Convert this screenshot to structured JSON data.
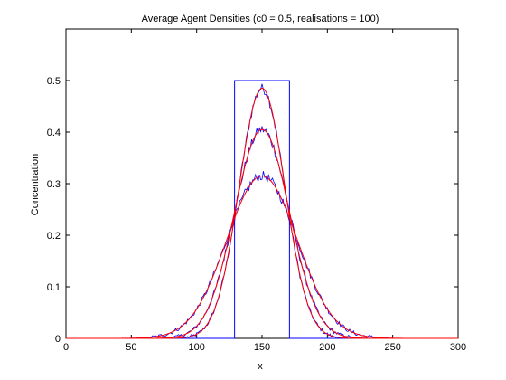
{
  "chart_data": {
    "type": "line",
    "title": "Average Agent Densities (c0 = 0.5, realisations = 100)",
    "xlabel": "x",
    "ylabel": "Concentration",
    "xlim": [
      0,
      300
    ],
    "ylim": [
      0,
      0.6
    ],
    "xticks": [
      "0",
      "50",
      "100",
      "150",
      "200",
      "250",
      "300"
    ],
    "yticks": [
      "0",
      "0.1",
      "0.2",
      "0.3",
      "0.4",
      "0.5"
    ],
    "grid": false,
    "legend": null,
    "colors": {
      "simulation": "#0000ff",
      "continuum": "#ff0000",
      "axes": "#000000"
    },
    "initial_condition": {
      "color": "#0000ff",
      "x": [
        0,
        129,
        129,
        171,
        171,
        300
      ],
      "y": [
        0,
        0,
        0.5,
        0.5,
        0,
        0
      ]
    },
    "profiles": [
      {
        "center": 150,
        "sigma": 17.5,
        "amplitude": 0.485
      },
      {
        "center": 150,
        "sigma": 21.0,
        "amplitude": 0.405
      },
      {
        "center": 150,
        "sigma": 27.0,
        "amplitude": 0.315
      }
    ]
  }
}
